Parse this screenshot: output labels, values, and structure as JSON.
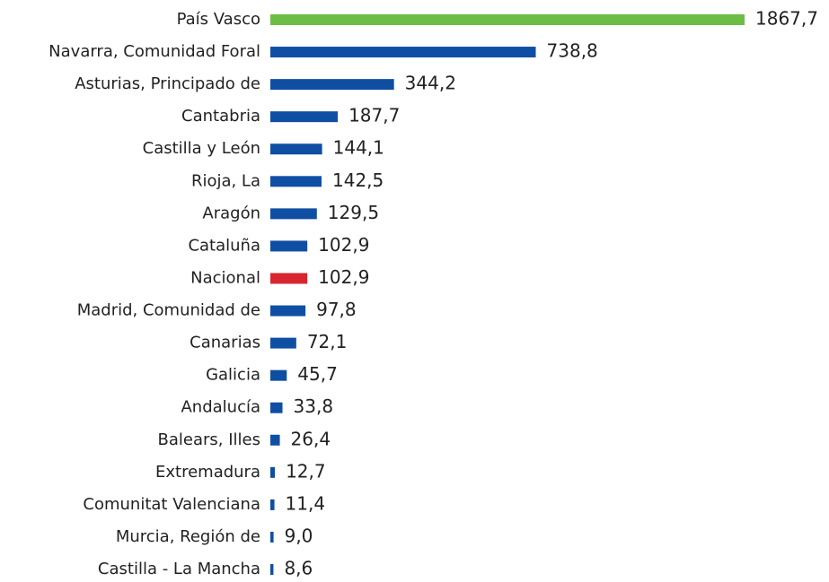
{
  "chart_data": {
    "type": "hbar",
    "categories": [
      "País Vasco",
      "Navarra, Comunidad Foral",
      "Asturias, Principado de",
      "Cantabria",
      "Castilla y León",
      "Rioja, La",
      "Aragón",
      "Cataluña",
      "Nacional",
      "Madrid, Comunidad de",
      "Canarias",
      "Galicia",
      "Andalucía",
      "Balears, Illes",
      "Extremadura",
      "Comunitat Valenciana",
      "Murcia, Región de",
      "Castilla - La Mancha"
    ],
    "values": [
      1867.7,
      738.8,
      344.2,
      187.7,
      144.1,
      142.5,
      129.5,
      102.9,
      102.9,
      97.8,
      72.1,
      45.7,
      33.8,
      26.4,
      12.7,
      11.4,
      9.0,
      8.6
    ],
    "value_labels": [
      "1867,7",
      "738,8",
      "344,2",
      "187,7",
      "144,1",
      "142,5",
      "129,5",
      "102,9",
      "102,9",
      "97,8",
      "72,1",
      "45,7",
      "33,8",
      "26,4",
      "12,7",
      "11,4",
      "9,0",
      "8,6"
    ],
    "colors": [
      "#6cbd45",
      "#0f4fa3",
      "#0f4fa3",
      "#0f4fa3",
      "#0f4fa3",
      "#0f4fa3",
      "#0f4fa3",
      "#0f4fa3",
      "#d7262f",
      "#0f4fa3",
      "#0f4fa3",
      "#0f4fa3",
      "#0f4fa3",
      "#0f4fa3",
      "#0f4fa3",
      "#0f4fa3",
      "#0f4fa3",
      "#0f4fa3"
    ]
  }
}
